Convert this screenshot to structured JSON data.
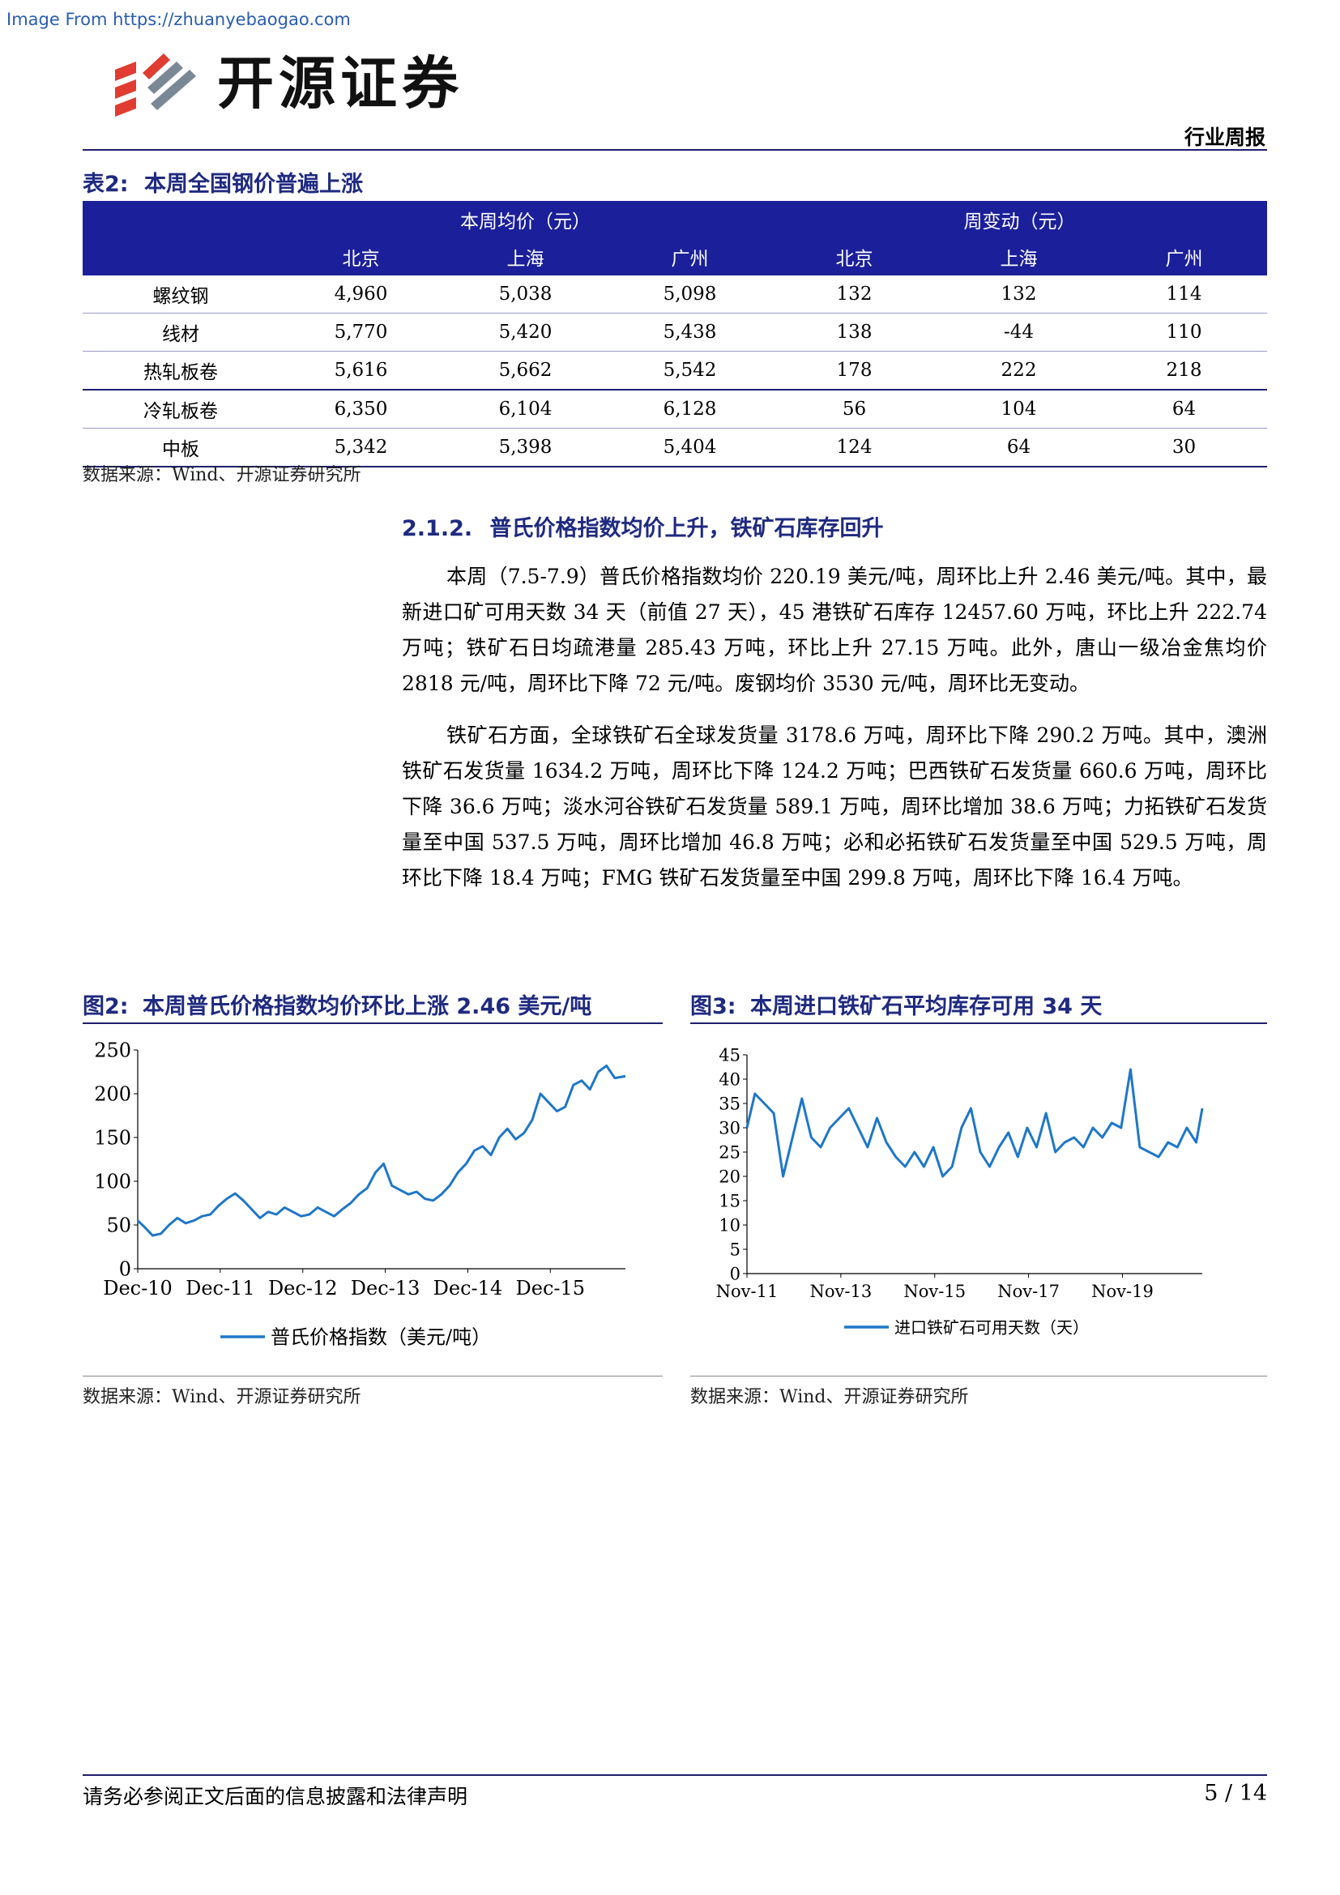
{
  "watermark": "Image From https://zhuanyebaogao.com",
  "brand": {
    "name": "开源证券",
    "accent": "#e03c31",
    "gray": "#7a8896"
  },
  "header": {
    "report_type": "行业周报"
  },
  "table2": {
    "caption_num": "表2:",
    "caption": "本周全国钢价普遍上涨",
    "group_headers": [
      "本周均价（元）",
      "周变动（元）"
    ],
    "sub_headers": [
      "北京",
      "上海",
      "广州",
      "北京",
      "上海",
      "广州"
    ],
    "rows": [
      {
        "label": "螺纹钢",
        "values": [
          "4,960",
          "5,038",
          "5,098",
          "132",
          "132",
          "114"
        ]
      },
      {
        "label": "线材",
        "values": [
          "5,770",
          "5,420",
          "5,438",
          "138",
          "-44",
          "110"
        ]
      },
      {
        "label": "热轧板卷",
        "values": [
          "5,616",
          "5,662",
          "5,542",
          "178",
          "222",
          "218"
        ]
      },
      {
        "label": "冷轧板卷",
        "values": [
          "6,350",
          "6,104",
          "6,128",
          "56",
          "104",
          "64"
        ]
      },
      {
        "label": "中板",
        "values": [
          "5,342",
          "5,398",
          "5,404",
          "124",
          "64",
          "30"
        ]
      }
    ],
    "source": "数据来源：Wind、开源证券研究所"
  },
  "section": {
    "number": "2.1.2.",
    "title": "普氏价格指数均价上升，铁矿石库存回升",
    "paragraphs": [
      "本周（7.5-7.9）普氏价格指数均价 220.19 美元/吨，周环比上升 2.46 美元/吨。其中，最新进口矿可用天数 34 天（前值 27 天），45 港铁矿石库存 12457.60 万吨，环比上升 222.74 万吨；铁矿石日均疏港量 285.43 万吨，环比上升 27.15 万吨。此外，唐山一级冶金焦均价 2818 元/吨，周环比下降 72 元/吨。废钢均价 3530 元/吨，周环比无变动。",
      "铁矿石方面，全球铁矿石全球发货量 3178.6 万吨，周环比下降 290.2 万吨。其中，澳洲铁矿石发货量 1634.2 万吨，周环比下降 124.2 万吨；巴西铁矿石发货量 660.6 万吨，周环比下降 36.6 万吨；淡水河谷铁矿石发货量 589.1 万吨，周环比增加 38.6 万吨；力拓铁矿石发货量至中国 537.5 万吨，周环比增加 46.8 万吨；必和必拓铁矿石发货量至中国 529.5 万吨，周环比下降 18.4 万吨；FMG 铁矿石发货量至中国 299.8 万吨，周环比下降 16.4 万吨。"
    ]
  },
  "figures": {
    "fig2": {
      "caption_num": "图2:",
      "caption": "本周普氏价格指数均价环比上涨 2.46 美元/吨",
      "source": "数据来源：Wind、开源证券研究所"
    },
    "fig3": {
      "caption_num": "图3:",
      "caption": "本周进口铁矿石平均库存可用 34 天",
      "source": "数据来源：Wind、开源证券研究所"
    }
  },
  "chart_data": [
    {
      "type": "line",
      "title": "",
      "xlabel": "",
      "ylabel": "",
      "x_ticks": [
        "Dec-10",
        "Dec-11",
        "Dec-12",
        "Dec-13",
        "Dec-14",
        "Dec-15"
      ],
      "y_ticks": [
        "0",
        "50",
        "100",
        "150",
        "200",
        "250"
      ],
      "ylim": [
        0,
        250
      ],
      "xlim": [
        2010.92,
        2016.83
      ],
      "grid": false,
      "legend_position": "bottom",
      "series": [
        {
          "name": "普氏价格指数（美元/吨）",
          "color": "#1f77c8",
          "x": [
            2010.92,
            2011.0,
            2011.1,
            2011.2,
            2011.3,
            2011.4,
            2011.5,
            2011.6,
            2011.7,
            2011.8,
            2011.9,
            2012.0,
            2012.1,
            2012.2,
            2012.3,
            2012.4,
            2012.5,
            2012.6,
            2012.7,
            2012.8,
            2012.9,
            2013.0,
            2013.1,
            2013.2,
            2013.3,
            2013.4,
            2013.5,
            2013.6,
            2013.7,
            2013.8,
            2013.9,
            2014.0,
            2014.1,
            2014.2,
            2014.3,
            2014.4,
            2014.5,
            2014.6,
            2014.7,
            2014.8,
            2014.9,
            2015.0,
            2015.1,
            2015.2,
            2015.3,
            2015.4,
            2015.5,
            2015.6,
            2015.7,
            2015.8,
            2015.9,
            2016.0,
            2016.1,
            2016.2,
            2016.3,
            2016.4,
            2016.5,
            2016.6,
            2016.7,
            2016.83
          ],
          "values": [
            55,
            48,
            38,
            40,
            50,
            58,
            52,
            55,
            60,
            62,
            72,
            80,
            86,
            78,
            68,
            58,
            65,
            62,
            70,
            65,
            60,
            62,
            70,
            65,
            60,
            68,
            75,
            85,
            92,
            110,
            120,
            95,
            90,
            85,
            88,
            80,
            78,
            85,
            95,
            110,
            120,
            135,
            140,
            130,
            150,
            160,
            148,
            155,
            170,
            200,
            190,
            180,
            185,
            210,
            215,
            205,
            225,
            232,
            218,
            220
          ]
        }
      ]
    },
    {
      "type": "line",
      "title": "",
      "xlabel": "",
      "ylabel": "",
      "x_ticks": [
        "Nov-11",
        "Nov-13",
        "Nov-15",
        "Nov-17",
        "Nov-19"
      ],
      "y_ticks": [
        "0",
        "5",
        "10",
        "15",
        "20",
        "25",
        "30",
        "35",
        "40",
        "45"
      ],
      "ylim": [
        0,
        45
      ],
      "xlim": [
        2011.83,
        2021.53
      ],
      "grid": false,
      "legend_position": "bottom",
      "series": [
        {
          "name": "进口铁矿石可用天数（天）",
          "color": "#1f77c8",
          "x": [
            2011.83,
            2012.0,
            2012.2,
            2012.4,
            2012.6,
            2012.8,
            2013.0,
            2013.2,
            2013.4,
            2013.6,
            2013.8,
            2014.0,
            2014.2,
            2014.4,
            2014.6,
            2014.8,
            2015.0,
            2015.2,
            2015.4,
            2015.6,
            2015.8,
            2016.0,
            2016.2,
            2016.4,
            2016.6,
            2016.8,
            2017.0,
            2017.2,
            2017.4,
            2017.6,
            2017.8,
            2018.0,
            2018.2,
            2018.4,
            2018.6,
            2018.8,
            2019.0,
            2019.2,
            2019.4,
            2019.6,
            2019.8,
            2020.0,
            2020.2,
            2020.4,
            2020.6,
            2020.8,
            2021.0,
            2021.2,
            2021.4,
            2021.53
          ],
          "values": [
            30,
            37,
            35,
            33,
            20,
            28,
            36,
            28,
            26,
            30,
            32,
            34,
            30,
            26,
            32,
            27,
            24,
            22,
            25,
            22,
            26,
            20,
            22,
            30,
            34,
            25,
            22,
            26,
            29,
            24,
            30,
            26,
            33,
            25,
            27,
            28,
            26,
            30,
            28,
            31,
            30,
            42,
            26,
            25,
            24,
            27,
            26,
            30,
            27,
            34
          ]
        }
      ]
    }
  ]
}
